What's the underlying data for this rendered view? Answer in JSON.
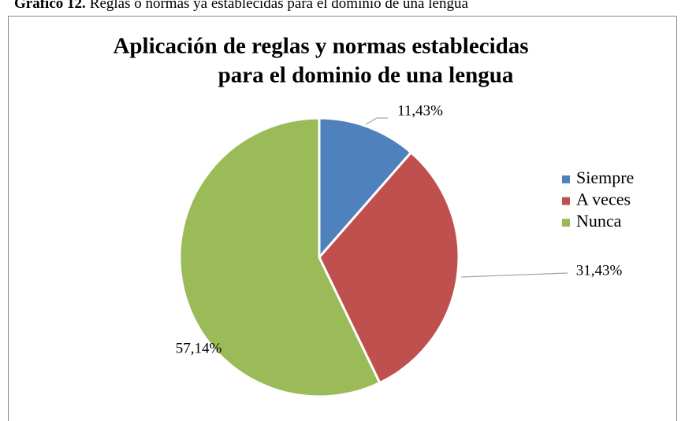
{
  "caption": {
    "label": "Gráfico 12.",
    "text": "Reglas o normas  ya establecidas para el dominio de una lengua"
  },
  "chart_data": {
    "type": "pie",
    "title": [
      "Aplicación de reglas y normas establecidas",
      "para el dominio de una lengua"
    ],
    "categories": [
      "Siempre",
      "A veces",
      "Nunca"
    ],
    "values": [
      11.43,
      31.43,
      57.14
    ],
    "value_labels": [
      "11,43%",
      "31,43%",
      "57,14%"
    ],
    "colors": [
      "#4f81bd",
      "#c0504d",
      "#9bbb59"
    ],
    "legend": "right"
  }
}
